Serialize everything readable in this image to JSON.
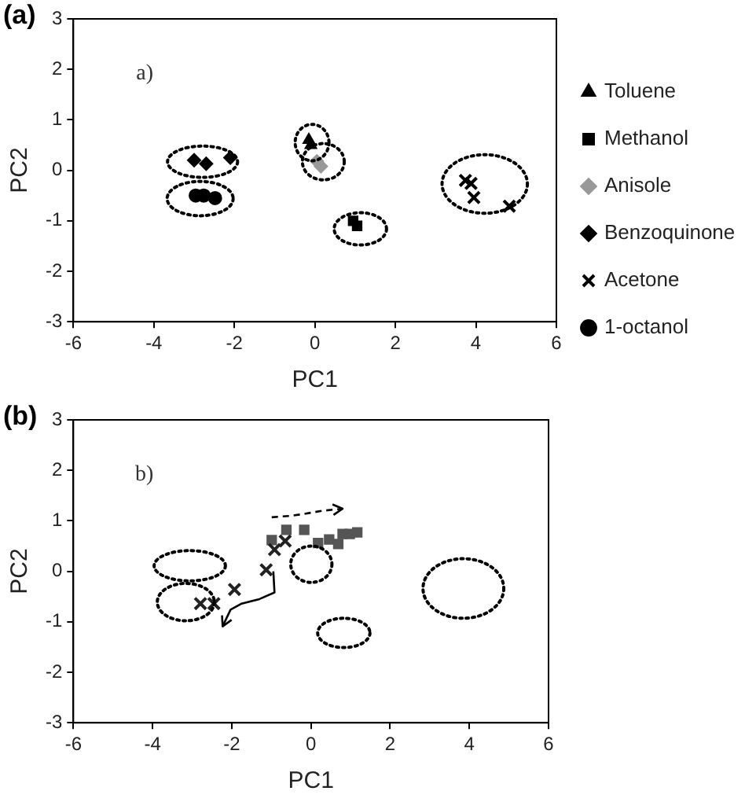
{
  "chart_data": [
    {
      "type": "scatter",
      "title": "(a)",
      "xlabel": "PC1",
      "ylabel": "PC2",
      "annotations": [
        "a)"
      ],
      "xlim": [
        -6,
        6
      ],
      "xticks": [
        -6,
        -4,
        -2,
        0,
        2,
        4,
        6
      ],
      "ylim": [
        -3,
        3
      ],
      "yticks": [
        -3,
        -2,
        -1,
        0,
        1,
        2,
        3
      ],
      "grid": false,
      "legend": "right",
      "series": [
        {
          "name": "Toluene",
          "color": "#000000",
          "marker": "triangle",
          "x": [
            -0.15,
            -0.1
          ],
          "values": [
            0.6,
            0.5
          ]
        },
        {
          "name": "Methanol",
          "color": "#000000",
          "marker": "square",
          "x": [
            0.95,
            1.05
          ],
          "values": [
            -1.0,
            -1.1
          ]
        },
        {
          "name": "Anisole",
          "color": "#999999",
          "marker": "diamond",
          "x": [
            0.05,
            0.15
          ],
          "values": [
            0.18,
            0.08
          ]
        },
        {
          "name": "Benzoquinone",
          "color": "#000000",
          "marker": "diamond",
          "x": [
            -3.0,
            -2.7,
            -2.1
          ],
          "values": [
            0.2,
            0.13,
            0.25
          ]
        },
        {
          "name": "Acetone",
          "color": "#000000",
          "marker": "cross",
          "x": [
            3.74,
            3.88,
            3.95,
            4.83
          ],
          "values": [
            -0.2,
            -0.26,
            -0.54,
            -0.71
          ]
        },
        {
          "name": "1-octanol",
          "color": "#000000",
          "marker": "circle",
          "x": [
            -2.96,
            -2.76,
            -2.48
          ],
          "values": [
            -0.5,
            -0.5,
            -0.55
          ]
        }
      ]
    },
    {
      "type": "scatter",
      "title": "(b)",
      "xlabel": "PC1",
      "ylabel": "PC2",
      "annotations": [
        "b)"
      ],
      "xlim": [
        -6,
        6
      ],
      "xticks": [
        -6,
        -4,
        -2,
        0,
        2,
        4,
        6
      ],
      "ylim": [
        -3,
        3
      ],
      "yticks": [
        -3,
        -2,
        -1,
        0,
        1,
        2,
        3
      ],
      "grid": false,
      "legend": false,
      "series": [
        {
          "color": "#222222",
          "marker": "cross",
          "x": [
            -2.79,
            -2.45,
            -1.93,
            -1.13,
            -0.92,
            -0.65
          ],
          "values": [
            -0.64,
            -0.64,
            -0.36,
            0.03,
            0.43,
            0.6
          ]
        },
        {
          "color": "#555555",
          "marker": "square",
          "x": [
            -0.99,
            -0.62,
            -0.17,
            0.18,
            0.46,
            0.8,
            0.98,
            1.17,
            0.69
          ],
          "values": [
            0.62,
            0.82,
            0.82,
            0.56,
            0.63,
            0.74,
            0.74,
            0.77,
            0.54
          ]
        }
      ]
    }
  ]
}
